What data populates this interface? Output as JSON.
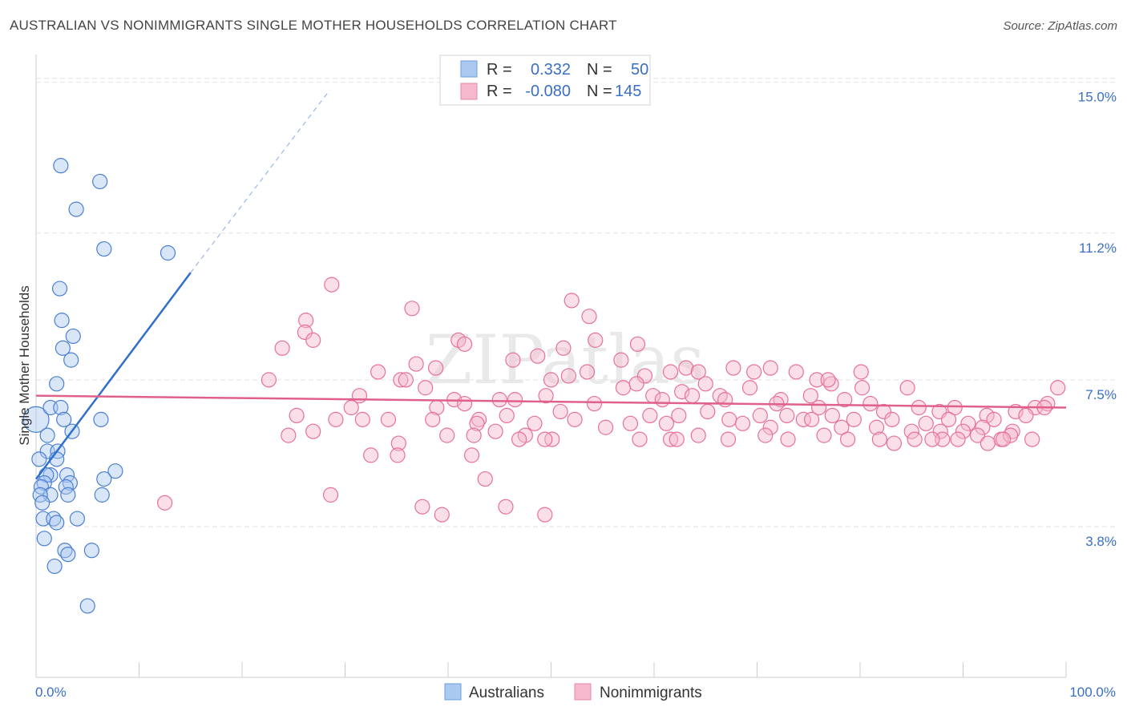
{
  "title": "AUSTRALIAN VS NONIMMIGRANTS SINGLE MOTHER HOUSEHOLDS CORRELATION CHART",
  "source": "Source: ZipAtlas.com",
  "watermark": "ZIPatlas",
  "colors": {
    "blue": "#4a7fd4",
    "blue_fill": "#aac8f0",
    "pink": "#e8709a",
    "pink_fill": "#f5b8cc",
    "label": "#3a6fc4",
    "grid": "#e2e2e2"
  },
  "legend": {
    "rows": [
      {
        "series": "Australians",
        "r_label": "R =",
        "r_value": "0.332",
        "n_label": "N =",
        "n_value": "50"
      },
      {
        "series": "Nonimmigrants",
        "r_label": "R =",
        "r_value": "-0.080",
        "n_label": "N =",
        "n_value": "145"
      }
    ]
  },
  "chart_data": {
    "type": "scatter",
    "title": "AUSTRALIAN VS NONIMMIGRANTS SINGLE MOTHER HOUSEHOLDS CORRELATION CHART",
    "xlabel": "",
    "ylabel": "Single Mother Households",
    "xlim": [
      0,
      100
    ],
    "ylim": [
      0,
      15.5
    ],
    "x_tick_labels": [
      "0.0%",
      "100.0%"
    ],
    "y_ticks": [
      3.8,
      7.5,
      11.2,
      15.0
    ],
    "y_tick_labels": [
      "3.8%",
      "7.5%",
      "11.2%",
      "15.0%"
    ],
    "grid": true,
    "legend_position": "top-center",
    "series": [
      {
        "name": "Australians",
        "color": "blue",
        "trend": {
          "x": [
            0,
            15
          ],
          "y": [
            5.0,
            10.2
          ],
          "dashed_extension": {
            "x": [
              15,
              28.5
            ],
            "y": [
              10.2,
              14.8
            ]
          }
        },
        "points": [
          [
            0,
            6.5,
            2
          ],
          [
            2.4,
            12.9,
            1
          ],
          [
            6.2,
            12.5,
            1
          ],
          [
            3.9,
            11.8,
            1
          ],
          [
            6.6,
            10.8,
            1
          ],
          [
            12.8,
            10.7,
            1
          ],
          [
            2.3,
            9.8,
            1
          ],
          [
            2.5,
            9.0,
            1
          ],
          [
            3.6,
            8.6,
            1
          ],
          [
            2.6,
            8.3,
            1
          ],
          [
            3.4,
            8.0,
            1
          ],
          [
            2.0,
            7.4,
            1
          ],
          [
            1.4,
            6.8,
            1
          ],
          [
            2.4,
            6.8,
            1
          ],
          [
            6.3,
            6.5,
            1
          ],
          [
            2.7,
            6.5,
            1
          ],
          [
            1.1,
            6.1,
            1
          ],
          [
            3.5,
            6.2,
            1
          ],
          [
            1.1,
            5.7,
            1
          ],
          [
            2.1,
            5.7,
            1
          ],
          [
            0.3,
            5.5,
            1
          ],
          [
            2.0,
            5.5,
            1
          ],
          [
            7.7,
            5.2,
            1
          ],
          [
            1.4,
            5.1,
            1
          ],
          [
            1.0,
            5.1,
            1
          ],
          [
            3.0,
            5.1,
            1
          ],
          [
            0.8,
            4.9,
            1
          ],
          [
            3.3,
            4.9,
            1
          ],
          [
            6.6,
            5.0,
            1
          ],
          [
            0.5,
            4.8,
            1
          ],
          [
            2.9,
            4.8,
            1
          ],
          [
            1.4,
            4.6,
            1
          ],
          [
            0.4,
            4.6,
            1
          ],
          [
            3.1,
            4.6,
            1
          ],
          [
            6.4,
            4.6,
            1
          ],
          [
            0.6,
            4.4,
            1
          ],
          [
            0.7,
            4.0,
            1
          ],
          [
            1.7,
            4.0,
            1
          ],
          [
            2.0,
            3.9,
            1
          ],
          [
            4.0,
            4.0,
            1
          ],
          [
            0.8,
            3.5,
            1
          ],
          [
            2.8,
            3.2,
            1
          ],
          [
            3.1,
            3.1,
            1
          ],
          [
            5.4,
            3.2,
            1
          ],
          [
            1.8,
            2.8,
            1
          ],
          [
            5.0,
            1.8,
            1
          ]
        ]
      },
      {
        "name": "Nonimmigrants",
        "color": "pink",
        "trend": {
          "x": [
            0,
            100
          ],
          "y": [
            7.1,
            6.8
          ]
        },
        "points": [
          [
            28.7,
            9.9,
            1
          ],
          [
            52.0,
            9.5,
            1
          ],
          [
            36.5,
            9.3,
            1
          ],
          [
            53.7,
            9.1,
            1
          ],
          [
            26.2,
            9.0,
            1
          ],
          [
            26.1,
            8.7,
            1
          ],
          [
            26.9,
            8.5,
            1
          ],
          [
            41.0,
            8.5,
            1
          ],
          [
            23.9,
            8.3,
            1
          ],
          [
            41.6,
            8.4,
            1
          ],
          [
            54.3,
            8.5,
            1
          ],
          [
            51.2,
            8.3,
            1
          ],
          [
            58.4,
            8.4,
            1
          ],
          [
            48.7,
            8.1,
            1
          ],
          [
            46.3,
            8.0,
            1
          ],
          [
            36.9,
            7.9,
            1
          ],
          [
            38.8,
            7.8,
            1
          ],
          [
            33.2,
            7.7,
            1
          ],
          [
            51.7,
            7.6,
            1
          ],
          [
            53.5,
            7.7,
            1
          ],
          [
            56.8,
            8.0,
            1
          ],
          [
            59.1,
            7.6,
            1
          ],
          [
            61.6,
            7.7,
            1
          ],
          [
            63.1,
            7.8,
            1
          ],
          [
            64.3,
            7.7,
            1
          ],
          [
            67.7,
            7.8,
            1
          ],
          [
            69.7,
            7.7,
            1
          ],
          [
            71.3,
            7.8,
            1
          ],
          [
            73.8,
            7.7,
            1
          ],
          [
            75.8,
            7.5,
            1
          ],
          [
            77.2,
            7.4,
            1
          ],
          [
            80.2,
            7.3,
            1
          ],
          [
            80.1,
            7.7,
            1
          ],
          [
            76.9,
            7.5,
            1
          ],
          [
            22.6,
            7.5,
            1
          ],
          [
            35.4,
            7.5,
            1
          ],
          [
            35.9,
            7.5,
            1
          ],
          [
            37.8,
            7.3,
            1
          ],
          [
            50.0,
            7.5,
            1
          ],
          [
            57.0,
            7.3,
            1
          ],
          [
            58.3,
            7.4,
            1
          ],
          [
            59.9,
            7.1,
            1
          ],
          [
            62.7,
            7.2,
            1
          ],
          [
            65.0,
            7.4,
            1
          ],
          [
            66.4,
            7.1,
            1
          ],
          [
            69.3,
            7.3,
            1
          ],
          [
            72.3,
            7.0,
            1
          ],
          [
            75.2,
            7.1,
            1
          ],
          [
            78.5,
            7.0,
            1
          ],
          [
            81.0,
            6.9,
            1
          ],
          [
            84.6,
            7.3,
            1
          ],
          [
            31.4,
            7.1,
            1
          ],
          [
            40.6,
            7.0,
            1
          ],
          [
            45.0,
            7.0,
            1
          ],
          [
            46.5,
            7.0,
            1
          ],
          [
            49.5,
            7.1,
            1
          ],
          [
            54.2,
            6.9,
            1
          ],
          [
            60.8,
            7.0,
            1
          ],
          [
            63.7,
            7.1,
            1
          ],
          [
            66.9,
            7.0,
            1
          ],
          [
            71.9,
            6.9,
            1
          ],
          [
            76.0,
            6.8,
            1
          ],
          [
            82.3,
            6.7,
            1
          ],
          [
            85.7,
            6.8,
            1
          ],
          [
            87.7,
            6.7,
            1
          ],
          [
            89.2,
            6.8,
            1
          ],
          [
            92.3,
            6.6,
            1
          ],
          [
            95.1,
            6.7,
            1
          ],
          [
            97.0,
            6.8,
            1
          ],
          [
            98.2,
            6.9,
            1
          ],
          [
            99.2,
            7.3,
            1
          ],
          [
            30.6,
            6.8,
            1
          ],
          [
            38.9,
            6.8,
            1
          ],
          [
            41.6,
            6.9,
            1
          ],
          [
            43.0,
            6.5,
            1
          ],
          [
            45.7,
            6.6,
            1
          ],
          [
            50.9,
            6.7,
            1
          ],
          [
            52.3,
            6.5,
            1
          ],
          [
            59.6,
            6.6,
            1
          ],
          [
            62.4,
            6.6,
            1
          ],
          [
            65.2,
            6.7,
            1
          ],
          [
            67.3,
            6.5,
            1
          ],
          [
            70.3,
            6.6,
            1
          ],
          [
            72.9,
            6.6,
            1
          ],
          [
            74.5,
            6.5,
            1
          ],
          [
            77.3,
            6.6,
            1
          ],
          [
            79.4,
            6.5,
            1
          ],
          [
            83.1,
            6.5,
            1
          ],
          [
            86.4,
            6.4,
            1
          ],
          [
            88.6,
            6.5,
            1
          ],
          [
            90.5,
            6.4,
            1
          ],
          [
            93.0,
            6.5,
            1
          ],
          [
            96.1,
            6.6,
            1
          ],
          [
            97.9,
            6.8,
            1
          ],
          [
            25.3,
            6.6,
            1
          ],
          [
            29.1,
            6.5,
            1
          ],
          [
            31.7,
            6.5,
            1
          ],
          [
            34.2,
            6.5,
            1
          ],
          [
            38.5,
            6.5,
            1
          ],
          [
            42.8,
            6.4,
            1
          ],
          [
            44.6,
            6.2,
            1
          ],
          [
            48.4,
            6.4,
            1
          ],
          [
            55.3,
            6.3,
            1
          ],
          [
            57.7,
            6.4,
            1
          ],
          [
            61.2,
            6.4,
            1
          ],
          [
            68.6,
            6.4,
            1
          ],
          [
            71.3,
            6.3,
            1
          ],
          [
            75.3,
            6.5,
            1
          ],
          [
            78.2,
            6.3,
            1
          ],
          [
            81.6,
            6.3,
            1
          ],
          [
            85.0,
            6.2,
            1
          ],
          [
            87.8,
            6.2,
            1
          ],
          [
            90.0,
            6.2,
            1
          ],
          [
            91.9,
            6.3,
            1
          ],
          [
            94.8,
            6.2,
            1
          ],
          [
            24.5,
            6.1,
            1
          ],
          [
            26.9,
            6.2,
            1
          ],
          [
            39.9,
            6.1,
            1
          ],
          [
            42.5,
            6.1,
            1
          ],
          [
            47.5,
            6.1,
            1
          ],
          [
            50.1,
            6.0,
            1
          ],
          [
            58.6,
            6.0,
            1
          ],
          [
            61.6,
            6.0,
            1
          ],
          [
            64.3,
            6.1,
            1
          ],
          [
            67.2,
            6.0,
            1
          ],
          [
            70.8,
            6.1,
            1
          ],
          [
            73.0,
            6.0,
            1
          ],
          [
            76.5,
            6.1,
            1
          ],
          [
            78.8,
            6.0,
            1
          ],
          [
            83.3,
            5.9,
            1
          ],
          [
            85.3,
            6.0,
            1
          ],
          [
            88.0,
            6.0,
            1
          ],
          [
            89.5,
            6.0,
            1
          ],
          [
            91.4,
            6.1,
            1
          ],
          [
            93.7,
            6.0,
            1
          ],
          [
            94.6,
            6.1,
            1
          ],
          [
            35.2,
            5.9,
            1
          ],
          [
            46.9,
            6.0,
            1
          ],
          [
            49.4,
            6.0,
            1
          ],
          [
            62.2,
            6.0,
            1
          ],
          [
            81.9,
            6.0,
            1
          ],
          [
            87.0,
            6.0,
            1
          ],
          [
            92.4,
            5.9,
            1
          ],
          [
            93.9,
            6.0,
            1
          ],
          [
            96.7,
            6.0,
            1
          ],
          [
            32.5,
            5.6,
            1
          ],
          [
            35.1,
            5.6,
            1
          ],
          [
            42.3,
            5.6,
            1
          ],
          [
            43.6,
            5.0,
            1
          ],
          [
            28.6,
            4.6,
            1
          ],
          [
            12.5,
            4.4,
            1
          ],
          [
            37.5,
            4.3,
            1
          ],
          [
            39.4,
            4.1,
            1
          ],
          [
            45.6,
            4.3,
            1
          ],
          [
            49.4,
            4.1,
            1
          ]
        ]
      }
    ]
  },
  "bottom_legend": [
    "Australians",
    "Nonimmigrants"
  ]
}
